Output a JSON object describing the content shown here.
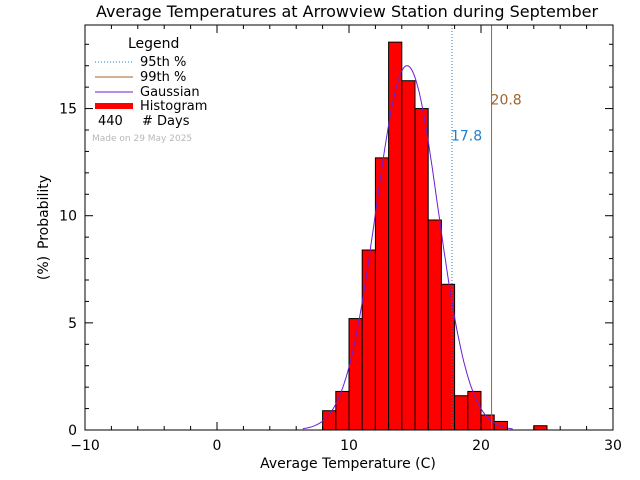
{
  "chart_data": {
    "type": "bar",
    "title": "Average Temperatures at Arrowview Station during September",
    "xlabel": "Average Temperature (C)",
    "ylabel_line1": "Probability",
    "ylabel_line2": "(%)",
    "xlim": [
      -10,
      30
    ],
    "ylim": [
      0,
      18.9
    ],
    "x_ticks": [
      -10,
      0,
      10,
      20,
      30
    ],
    "y_ticks": [
      0,
      5,
      10,
      15
    ],
    "histogram": {
      "bin_width": 1,
      "bins": [
        {
          "x0": 8,
          "value": 0.9
        },
        {
          "x0": 9,
          "value": 1.8
        },
        {
          "x0": 10,
          "value": 5.2
        },
        {
          "x0": 11,
          "value": 8.4
        },
        {
          "x0": 12,
          "value": 12.7
        },
        {
          "x0": 13,
          "value": 18.1
        },
        {
          "x0": 14,
          "value": 16.3
        },
        {
          "x0": 15,
          "value": 15.0
        },
        {
          "x0": 16,
          "value": 9.8
        },
        {
          "x0": 17,
          "value": 6.8
        },
        {
          "x0": 18,
          "value": 1.6
        },
        {
          "x0": 19,
          "value": 1.8
        },
        {
          "x0": 20,
          "value": 0.7
        },
        {
          "x0": 21,
          "value": 0.4
        },
        {
          "x0": 24,
          "value": 0.2
        }
      ]
    },
    "gaussian": {
      "mean": 14.4,
      "sd": 2.35,
      "peak": 17.0
    },
    "percentile_95": {
      "value": 17.8,
      "label": "17.8",
      "color": "#1e7fcf"
    },
    "percentile_99": {
      "value": 20.8,
      "label": "20.8",
      "color": "#a0642a"
    },
    "legend": {
      "title": "Legend",
      "placement": "top-left",
      "items": [
        {
          "label": "95th %",
          "style": "dotted",
          "color": "#1e7fcf"
        },
        {
          "label": "99th %",
          "style": "solid",
          "color": "#a0642a"
        },
        {
          "label": "Gaussian",
          "style": "solid",
          "color": "#6a1fd0"
        },
        {
          "label": "Histogram",
          "style": "thick",
          "color": "#ff0000"
        }
      ],
      "days_count": "440",
      "days_label": "# Days"
    },
    "made_on": "Made on 29 May 2025",
    "colors": {
      "bar_fill": "#ff0000",
      "bar_edge": "#000000",
      "gaussian": "#6a1fd0",
      "made_on": "#b8b8b8"
    }
  }
}
